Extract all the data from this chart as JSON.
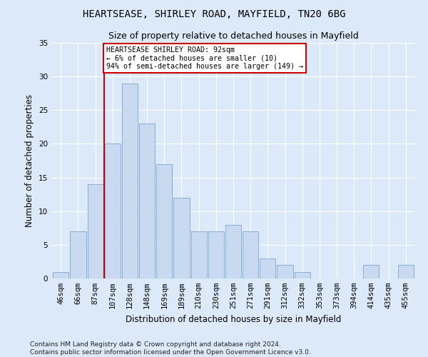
{
  "title": "HEARTSEASE, SHIRLEY ROAD, MAYFIELD, TN20 6BG",
  "subtitle": "Size of property relative to detached houses in Mayfield",
  "xlabel": "Distribution of detached houses by size in Mayfield",
  "ylabel": "Number of detached properties",
  "bin_labels": [
    "46sqm",
    "66sqm",
    "87sqm",
    "107sqm",
    "128sqm",
    "148sqm",
    "169sqm",
    "189sqm",
    "210sqm",
    "230sqm",
    "251sqm",
    "271sqm",
    "291sqm",
    "312sqm",
    "332sqm",
    "353sqm",
    "373sqm",
    "394sqm",
    "414sqm",
    "435sqm",
    "455sqm"
  ],
  "bar_values": [
    1,
    7,
    14,
    20,
    29,
    23,
    17,
    12,
    7,
    7,
    8,
    7,
    3,
    2,
    1,
    0,
    0,
    0,
    2,
    0,
    2
  ],
  "bar_color": "#c9d9f0",
  "bar_edge_color": "#7aa6d6",
  "vline_x_index": 2,
  "vline_color": "#cc0000",
  "annotation_text": "HEARTSEASE SHIRLEY ROAD: 92sqm\n← 6% of detached houses are smaller (10)\n94% of semi-detached houses are larger (149) →",
  "annotation_box_color": "#ffffff",
  "annotation_box_edge": "#cc0000",
  "ylim": [
    0,
    35
  ],
  "yticks": [
    0,
    5,
    10,
    15,
    20,
    25,
    30,
    35
  ],
  "footer_text": "Contains HM Land Registry data © Crown copyright and database right 2024.\nContains public sector information licensed under the Open Government Licence v3.0.",
  "background_color": "#dce9f8",
  "plot_background": "#dce9f8",
  "grid_color": "#ffffff",
  "title_fontsize": 10,
  "subtitle_fontsize": 9,
  "axis_label_fontsize": 8.5,
  "tick_fontsize": 7.5,
  "footer_fontsize": 6.5
}
